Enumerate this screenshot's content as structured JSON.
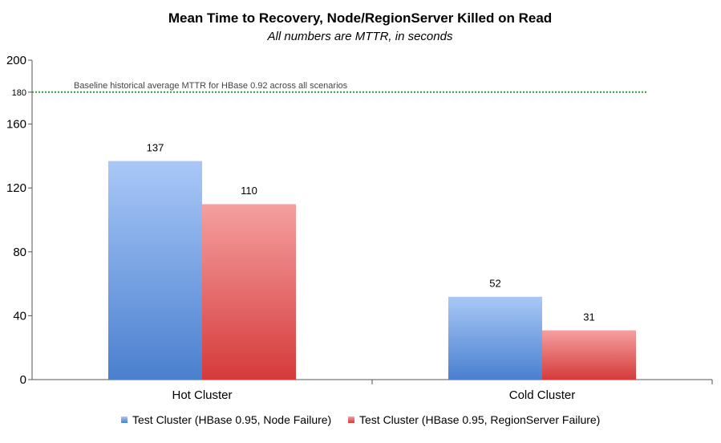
{
  "chart_data": {
    "type": "bar",
    "title": "Mean Time to Recovery, Node/RegionServer Killed on Read",
    "subtitle": "All numbers are MTTR, in seconds",
    "categories": [
      "Hot Cluster",
      "Cold Cluster"
    ],
    "series": [
      {
        "name": "Test Cluster (HBase 0.95, Node Failure)",
        "values": [
          137,
          52
        ],
        "color": "#5b8fd8"
      },
      {
        "name": "Test Cluster (HBase 0.95, RegionServer Failure)",
        "values": [
          110,
          31
        ],
        "color": "#e04a4a"
      }
    ],
    "ylim": [
      0,
      200
    ],
    "yticks": [
      0,
      40,
      80,
      120,
      160,
      200
    ],
    "ytick_labels": [
      "0",
      "40",
      "80",
      "120",
      "160",
      "200"
    ],
    "extra_tick": {
      "value": 180,
      "label": "180"
    },
    "baseline": {
      "value": 180,
      "label": "Baseline historical average MTTR for HBase 0.92 across all scenarios",
      "color": "#2e9e3a"
    },
    "legend_position": "bottom"
  }
}
